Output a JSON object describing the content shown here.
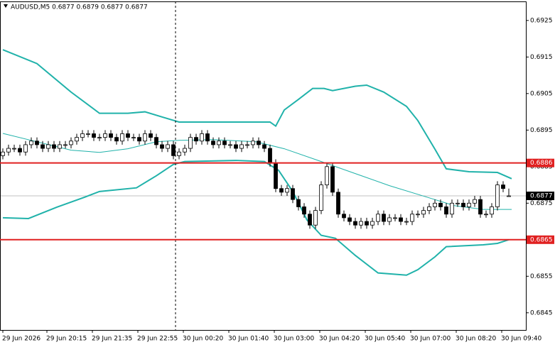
{
  "chart_data": {
    "type": "candlestick",
    "title": "AUDUSD,M5  0.6877 0.6879 0.6877 0.6877",
    "ylim": [
      0.68403,
      0.69306
    ],
    "yticks": [
      0.6925,
      0.6915,
      0.6905,
      0.6895,
      0.6885,
      0.6875,
      0.6865,
      0.6855,
      0.6845
    ],
    "xticks": [
      {
        "value": 0,
        "label": "29 Jun 2026"
      },
      {
        "value": 7.75,
        "label": "29 Jun 20:15"
      },
      {
        "value": 15.75,
        "label": "29 Jun 21:35"
      },
      {
        "value": 23.75,
        "label": "29 Jun 22:55"
      },
      {
        "value": 31.75,
        "label": "30 Jun 00:20"
      },
      {
        "value": 39.75,
        "label": "30 Jun 01:40"
      },
      {
        "value": 47.75,
        "label": "30 Jun 03:00"
      },
      {
        "value": 55.75,
        "label": "30 Jun 04:20"
      },
      {
        "value": 63.75,
        "label": "30 Jun 05:40"
      },
      {
        "value": 71.75,
        "label": "30 Jun 07:00"
      },
      {
        "value": 79.75,
        "label": "30 Jun 08:20"
      },
      {
        "value": 87.75,
        "label": "30 Jun 09:40"
      }
    ],
    "open": [
      0.6888,
      0.6889,
      0.689,
      0.689,
      0.6889,
      0.6891,
      0.6892,
      0.6891,
      0.689,
      0.6891,
      0.689,
      0.6891,
      0.6891,
      0.6892,
      0.6893,
      0.6894,
      0.6894,
      0.6893,
      0.6893,
      0.6894,
      0.6893,
      0.6892,
      0.6894,
      0.6893,
      0.6893,
      0.6892,
      0.6894,
      0.6893,
      0.6891,
      0.689,
      0.6891,
      0.6888,
      0.6889,
      0.689,
      0.6893,
      0.6892,
      0.6894,
      0.6892,
      0.6891,
      0.6892,
      0.6891,
      0.6891,
      0.689,
      0.6891,
      0.6891,
      0.6892,
      0.6891,
      0.689,
      0.6886,
      0.6879,
      0.6878,
      0.6879,
      0.6876,
      0.6874,
      0.6872,
      0.6869,
      0.6873,
      0.688,
      0.6885,
      0.6878,
      0.6872,
      0.6871,
      0.687,
      0.6869,
      0.687,
      0.6869,
      0.687,
      0.6872,
      0.687,
      0.6871,
      0.6871,
      0.687,
      0.687,
      0.6872,
      0.6872,
      0.6873,
      0.6874,
      0.6875,
      0.6874,
      0.6872,
      0.6875,
      0.6875,
      0.6874,
      0.6875,
      0.6876,
      0.6872,
      0.6872,
      0.6874,
      0.688,
      0.6877
    ],
    "high": [
      0.689,
      0.6891,
      0.6891,
      0.6891,
      0.6892,
      0.6893,
      0.6893,
      0.6892,
      0.6892,
      0.6892,
      0.6892,
      0.6892,
      0.6893,
      0.6894,
      0.6895,
      0.6895,
      0.6895,
      0.6894,
      0.6895,
      0.6895,
      0.6894,
      0.6895,
      0.6895,
      0.6894,
      0.6894,
      0.6895,
      0.6895,
      0.6894,
      0.6892,
      0.6892,
      0.6892,
      0.689,
      0.6891,
      0.6894,
      0.6894,
      0.6895,
      0.6895,
      0.6893,
      0.6893,
      0.6893,
      0.6892,
      0.6892,
      0.6892,
      0.6892,
      0.6893,
      0.6893,
      0.6892,
      0.6891,
      0.6887,
      0.688,
      0.688,
      0.688,
      0.6877,
      0.6875,
      0.6873,
      0.6874,
      0.6881,
      0.6886,
      0.6886,
      0.6879,
      0.6873,
      0.6872,
      0.6871,
      0.6871,
      0.6871,
      0.6871,
      0.6873,
      0.6873,
      0.6872,
      0.6872,
      0.6872,
      0.6871,
      0.6873,
      0.6873,
      0.6874,
      0.6875,
      0.6876,
      0.6876,
      0.6875,
      0.6876,
      0.6876,
      0.6876,
      0.6876,
      0.6877,
      0.6877,
      0.6873,
      0.6875,
      0.6881,
      0.6881,
      0.6879
    ],
    "low": [
      0.6887,
      0.6888,
      0.6889,
      0.6888,
      0.6888,
      0.689,
      0.689,
      0.6889,
      0.6889,
      0.6889,
      0.6889,
      0.689,
      0.689,
      0.6891,
      0.6892,
      0.6893,
      0.6892,
      0.6892,
      0.6892,
      0.6892,
      0.6891,
      0.6891,
      0.6892,
      0.6892,
      0.6891,
      0.6891,
      0.6892,
      0.689,
      0.6889,
      0.6889,
      0.6887,
      0.6887,
      0.6888,
      0.6889,
      0.6891,
      0.6891,
      0.6891,
      0.689,
      0.689,
      0.689,
      0.689,
      0.6889,
      0.6889,
      0.689,
      0.689,
      0.689,
      0.6889,
      0.6885,
      0.6878,
      0.6877,
      0.6877,
      0.6875,
      0.6873,
      0.6871,
      0.6868,
      0.6868,
      0.6872,
      0.6879,
      0.6877,
      0.6871,
      0.687,
      0.6869,
      0.6868,
      0.6868,
      0.6868,
      0.6868,
      0.6869,
      0.6869,
      0.6869,
      0.687,
      0.6869,
      0.6869,
      0.6869,
      0.6871,
      0.6871,
      0.6872,
      0.6873,
      0.6873,
      0.6871,
      0.6871,
      0.6874,
      0.6873,
      0.6873,
      0.6874,
      0.6871,
      0.6871,
      0.6871,
      0.6873,
      0.6878,
      0.6877
    ],
    "close": [
      0.6889,
      0.689,
      0.689,
      0.6889,
      0.6891,
      0.6892,
      0.6891,
      0.689,
      0.6891,
      0.689,
      0.6891,
      0.6891,
      0.6892,
      0.6893,
      0.6894,
      0.6894,
      0.6893,
      0.6893,
      0.6894,
      0.6893,
      0.6892,
      0.6894,
      0.6893,
      0.6893,
      0.6892,
      0.6894,
      0.6893,
      0.6891,
      0.689,
      0.6891,
      0.6888,
      0.6889,
      0.689,
      0.6893,
      0.6892,
      0.6894,
      0.6892,
      0.6891,
      0.6892,
      0.6891,
      0.6891,
      0.689,
      0.6891,
      0.6891,
      0.6892,
      0.6891,
      0.689,
      0.6886,
      0.6879,
      0.6878,
      0.6879,
      0.6876,
      0.6874,
      0.6872,
      0.6869,
      0.6873,
      0.688,
      0.6885,
      0.6878,
      0.6872,
      0.6871,
      0.687,
      0.6869,
      0.687,
      0.6869,
      0.687,
      0.6872,
      0.687,
      0.6871,
      0.6871,
      0.687,
      0.687,
      0.6872,
      0.6872,
      0.6873,
      0.6874,
      0.6875,
      0.6874,
      0.6872,
      0.6875,
      0.6875,
      0.6874,
      0.6875,
      0.6876,
      0.6872,
      0.6872,
      0.6874,
      0.688,
      0.6879,
      0.6877
    ],
    "bands": [
      {
        "color": "#20b2aa",
        "x": [
          0,
          6,
          12,
          17,
          22,
          25,
          28,
          31,
          47,
          48,
          49.5,
          52,
          54.5,
          56.5,
          58,
          62,
          64,
          67,
          71,
          73,
          76,
          78,
          82,
          87,
          89.5
        ],
        "values": [
          0.6917,
          0.69132,
          0.69054,
          0.68996,
          0.68996,
          0.69,
          0.68986,
          0.68972,
          0.68972,
          0.68961,
          0.69005,
          0.69034,
          0.69064,
          0.69064,
          0.69058,
          0.6907,
          0.69073,
          0.69054,
          0.69015,
          0.68976,
          0.68898,
          0.68844,
          0.68836,
          0.68834,
          0.68817
        ]
      },
      {
        "color": "#20b2aa",
        "x": [
          0,
          6,
          12,
          17,
          22,
          27,
          31,
          37,
          44.5,
          49.5,
          56,
          62,
          68,
          74.5,
          79.5,
          84.5,
          89.5
        ],
        "values": [
          0.68941,
          0.68918,
          0.68895,
          0.68889,
          0.68899,
          0.68918,
          0.68922,
          0.68924,
          0.68918,
          0.68899,
          0.68864,
          0.68831,
          0.68798,
          0.68767,
          0.68743,
          0.68733,
          0.68733
        ]
      },
      {
        "color": "#20b2aa",
        "x": [
          0,
          4.5,
          9.5,
          14.5,
          17,
          23.5,
          27,
          30,
          32,
          41,
          46,
          48.5,
          51,
          53.5,
          56,
          58.5,
          62,
          66,
          71,
          73,
          76,
          78,
          84.5,
          87,
          89
        ],
        "values": [
          0.6871,
          0.68708,
          0.68739,
          0.68767,
          0.68782,
          0.68792,
          0.68825,
          0.68856,
          0.68864,
          0.68867,
          0.68864,
          0.6884,
          0.68782,
          0.68704,
          0.68662,
          0.68654,
          0.68607,
          0.68559,
          0.68553,
          0.68568,
          0.68603,
          0.68631,
          0.68636,
          0.6864,
          0.6865
        ]
      }
    ],
    "hlines": [
      {
        "value": 0.6886,
        "color": "#e02020"
      },
      {
        "value": 0.6865,
        "color": "#e02020"
      }
    ],
    "current_price": {
      "value": 0.6877,
      "color": "#000000"
    }
  }
}
